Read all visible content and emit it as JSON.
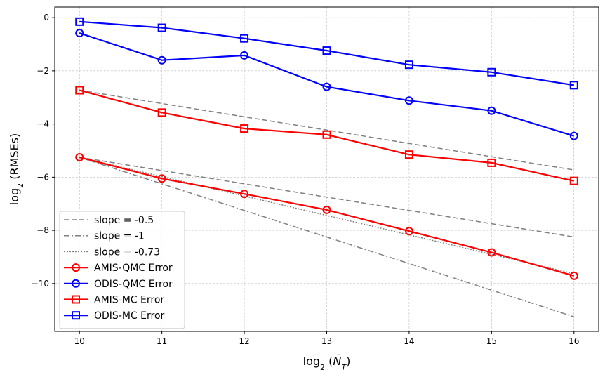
{
  "chart_data": {
    "type": "line",
    "title": "",
    "xlabel": "log₂(N̄_T)",
    "ylabel": "log₂(RMSEs)",
    "x_ticks": [
      10,
      11,
      12,
      13,
      14,
      15,
      16
    ],
    "y_ticks": [
      0,
      -2,
      -4,
      -6,
      -8,
      -10
    ],
    "xlim": [
      9.7,
      16.3
    ],
    "ylim": [
      -11.8,
      0.4
    ],
    "grid": true,
    "legend_position": "lower-left",
    "x": [
      10,
      11,
      12,
      13,
      14,
      15,
      16
    ],
    "series": [
      {
        "name": "slope = -0.5",
        "style": "dashed",
        "color": "#808080",
        "kind": "reference",
        "values": [
          -2.73,
          -3.23,
          -3.73,
          -4.23,
          -4.73,
          -5.23,
          -5.73
        ]
      },
      {
        "name": "slope = -0.5",
        "style": "dashed",
        "color": "#808080",
        "kind": "reference",
        "legend": false,
        "values": [
          -5.25,
          -5.75,
          -6.25,
          -6.75,
          -7.25,
          -7.75,
          -8.25
        ]
      },
      {
        "name": "slope = -1",
        "style": "dashdot",
        "color": "#808080",
        "kind": "reference",
        "values": [
          -5.25,
          -6.25,
          -7.25,
          -8.25,
          -9.25,
          -10.25,
          -11.25
        ]
      },
      {
        "name": "slope = -0.73",
        "style": "dotted",
        "color": "#808080",
        "kind": "reference",
        "values": [
          -5.25,
          -5.98,
          -6.71,
          -7.44,
          -8.17,
          -8.9,
          -9.63
        ]
      },
      {
        "name": "AMIS-QMC Error",
        "style": "solid",
        "color": "#ff0000",
        "marker": "circle",
        "values": [
          -5.25,
          -6.05,
          -6.63,
          -7.23,
          -8.03,
          -8.83,
          -9.71
        ]
      },
      {
        "name": "ODIS-QMC Error",
        "style": "solid",
        "color": "#0000ff",
        "marker": "circle",
        "values": [
          -0.58,
          -1.6,
          -1.42,
          -2.6,
          -3.12,
          -3.5,
          -4.45
        ]
      },
      {
        "name": "AMIS-MC Error",
        "style": "solid",
        "color": "#ff0000",
        "marker": "square",
        "values": [
          -2.73,
          -3.57,
          -4.17,
          -4.4,
          -5.15,
          -5.46,
          -6.14
        ]
      },
      {
        "name": "ODIS-MC Error",
        "style": "solid",
        "color": "#0000ff",
        "marker": "square",
        "values": [
          -0.15,
          -0.38,
          -0.78,
          -1.24,
          -1.77,
          -2.05,
          -2.54
        ]
      }
    ]
  }
}
